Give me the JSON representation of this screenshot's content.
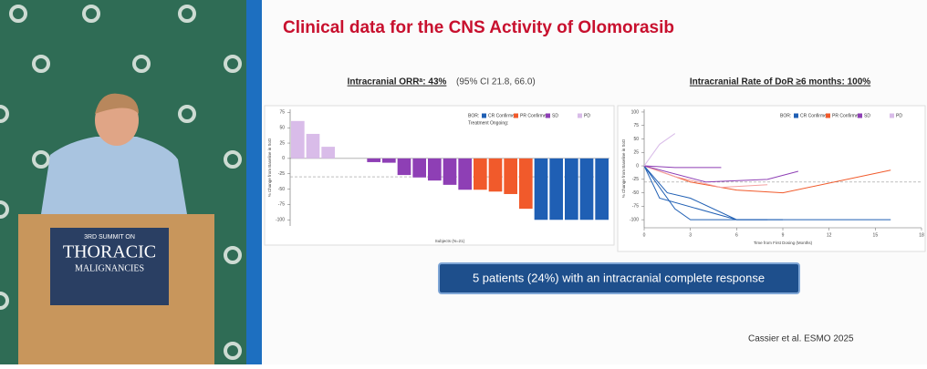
{
  "podium": {
    "line1": "3RD SUMMIT ON",
    "line2": "THORACIC",
    "line3": "MALIGNANCIES"
  },
  "slide": {
    "title": "Clinical data for the CNS Activity of Olomorasib",
    "callout": "5 patients (24%) with an intracranial complete response",
    "citation": "Cassier et al. ESMO 2025"
  },
  "chart_data": [
    {
      "type": "bar",
      "title": "Intracranial ORRᵃ: 43%",
      "subtitle": "(95% CI 21.8, 66.0)",
      "x_label": "Subjects (N=21)",
      "y_label": "% Change from Baseline in SoD",
      "values": [
        61,
        40,
        19,
        0,
        0,
        -6,
        -7,
        -27,
        -31,
        -36,
        -43,
        -51,
        -51,
        -54,
        -58,
        -82,
        -100,
        -100,
        -100,
        -100,
        -100
      ],
      "colors": [
        "#d9bce9",
        "#d9bce9",
        "#d9bce9",
        "#8e3fb5",
        "#8e3fb5",
        "#8e3fb5",
        "#8e3fb5",
        "#8e3fb5",
        "#8e3fb5",
        "#8e3fb5",
        "#8e3fb5",
        "#8e3fb5",
        "#f15a2b",
        "#f15a2b",
        "#f15a2b",
        "#f15a2b",
        "#1f5fb4",
        "#1f5fb4",
        "#1f5fb4",
        "#1f5fb4",
        "#1f5fb4"
      ],
      "legend_title": "BOR:",
      "note": "Treatment Ongoing:",
      "legend": [
        {
          "name": "CR Confirmed",
          "color": "#1f5fb4"
        },
        {
          "name": "PR Confirmed",
          "color": "#f15a2b"
        },
        {
          "name": "SD",
          "color": "#8e3fb5"
        },
        {
          "name": "PD",
          "color": "#d9bce9"
        }
      ],
      "reference_line": -30,
      "ylim": [
        -110,
        80
      ],
      "yticks": [
        75,
        50,
        25,
        0,
        -25,
        -50,
        -75,
        -100
      ]
    },
    {
      "type": "line",
      "title": "Intracranial Rate of DoR ≥6 months: 100%",
      "x_label": "Time from First Dosing (Months)",
      "y_label": "% Change from Baseline in SoD",
      "legend_title": "BOR:",
      "legend": [
        {
          "name": "CR Confirmed",
          "color": "#1f5fb4"
        },
        {
          "name": "PR Confirmed",
          "color": "#f15a2b"
        },
        {
          "name": "SD",
          "color": "#8e3fb5"
        },
        {
          "name": "PD",
          "color": "#d9bce9"
        }
      ],
      "series": [
        {
          "color": "#1f5fb4",
          "x": [
            0,
            1.5,
            3,
            6,
            9
          ],
          "values": [
            0,
            -50,
            -60,
            -100,
            -100
          ]
        },
        {
          "color": "#1f5fb4",
          "x": [
            0,
            1,
            6,
            9,
            12,
            16
          ],
          "values": [
            0,
            -60,
            -100,
            -100,
            -100,
            -100
          ]
        },
        {
          "color": "#1f5fb4",
          "x": [
            0,
            2,
            3,
            5,
            8
          ],
          "values": [
            0,
            -80,
            -100,
            -100,
            -100
          ]
        },
        {
          "color": "#f15a2b",
          "x": [
            0,
            3,
            6,
            9,
            16
          ],
          "values": [
            0,
            -30,
            -45,
            -50,
            -8
          ]
        },
        {
          "color": "#f4a0a0",
          "x": [
            0,
            2,
            5,
            8
          ],
          "values": [
            0,
            -20,
            -40,
            -35
          ]
        },
        {
          "color": "#8e3fb5",
          "x": [
            0,
            2,
            4,
            5
          ],
          "values": [
            0,
            -3,
            -3,
            -3
          ]
        },
        {
          "color": "#8e3fb5",
          "x": [
            0,
            4,
            8,
            10
          ],
          "values": [
            0,
            -30,
            -25,
            -10
          ]
        },
        {
          "color": "#d9bce9",
          "x": [
            0,
            1,
            2
          ],
          "values": [
            0,
            40,
            60
          ]
        }
      ],
      "reference_line": -30,
      "xlim": [
        0,
        18
      ],
      "xticks": [
        0,
        3,
        6,
        9,
        12,
        15,
        18
      ],
      "ylim": [
        -115,
        105
      ],
      "yticks": [
        100,
        75,
        50,
        25,
        0,
        -25,
        -50,
        -75,
        -100
      ]
    }
  ]
}
